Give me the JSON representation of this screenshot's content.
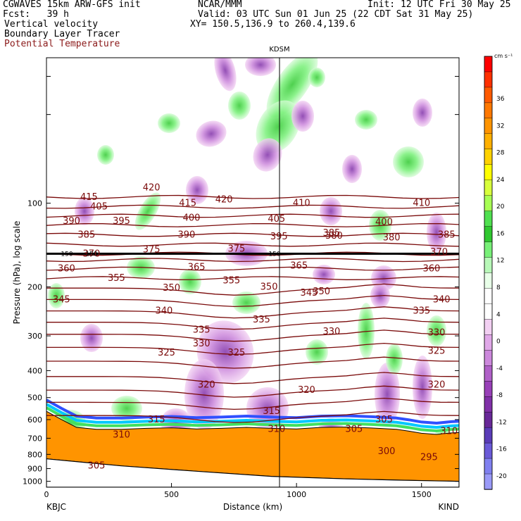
{
  "header": {
    "model_line": "CGWAVES 15km ARW-GFS init",
    "org": "NCAR/MMM",
    "init_line": "Init: 12 UTC Fri 30 May 25",
    "fcst_line": "Fcst:   39 h",
    "valid_line": "Valid: 03 UTC Sun 01 Jun 25 (22 CDT Sat 31 May 25)",
    "field1": "Vertical velocity",
    "field2": "Boundary Layer Tracer",
    "field3": "Potential Temperature",
    "xy_line": "XY= 150.5,136.9 to 260.4,139.6",
    "field3_color": "#8b1a1a"
  },
  "chart_data": {
    "type": "heatmap",
    "title": "",
    "xlabel": "Distance (km)",
    "ylabel": "Pressure (hPa), log scale",
    "x_ticks": [
      "0",
      "500",
      "1000",
      "1500"
    ],
    "x_tick_values": [
      0,
      500,
      1000,
      1500
    ],
    "xlim": [
      0,
      1650
    ],
    "y_tick_labels": [
      "100",
      "200",
      "300",
      "400",
      "500",
      "600",
      "700",
      "800",
      "900",
      "1000"
    ],
    "y_tick_values": [
      100,
      200,
      300,
      400,
      500,
      600,
      700,
      800,
      900,
      1000
    ],
    "yscale": "log",
    "ylim": [
      1050,
      30
    ],
    "left_endpoint": "KBJC",
    "right_endpoint": "KIND",
    "marker_label": "KDSM",
    "marker_x_km": 930,
    "colorbar": {
      "unit": "cm s⁻¹",
      "tick_labels": [
        "36",
        "32",
        "28",
        "24",
        "20",
        "16",
        "12",
        "8",
        "4",
        "0",
        "-4",
        "-8",
        "-12",
        "-16",
        "-20"
      ],
      "tick_values": [
        36,
        32,
        28,
        24,
        20,
        16,
        12,
        8,
        4,
        0,
        -4,
        -8,
        -12,
        -16,
        -20
      ],
      "colors": [
        "#ff0000",
        "#ff3000",
        "#ff5a00",
        "#ff7800",
        "#ff9400",
        "#ffb000",
        "#ffd200",
        "#ffff00",
        "#d8ff3c",
        "#a8ff54",
        "#50e050",
        "#30c830",
        "#78f078",
        "#b8f8b8",
        "#e8ffe8",
        "#ffffff",
        "#ffffff",
        "#f2d0f2",
        "#e0a8e8",
        "#cc88dc",
        "#b060c8",
        "#9840b8",
        "#8030a8",
        "#682898",
        "#5a3cb8",
        "#6a5ad8",
        "#8080f0",
        "#9a9af8"
      ]
    },
    "theta_levels": [
      "415",
      "420",
      "405",
      "415",
      "420",
      "410",
      "410",
      "390",
      "395",
      "400",
      "405",
      "400",
      "385",
      "390",
      "380",
      "395",
      "385",
      "380",
      "385",
      "370",
      "375",
      "375",
      "370",
      "360",
      "365",
      "365",
      "360",
      "355",
      "355",
      "350",
      "350",
      "345",
      "350",
      "345",
      "340",
      "340",
      "335",
      "335",
      "335",
      "330",
      "330",
      "330",
      "325",
      "325",
      "325",
      "320",
      "320",
      "320",
      "315",
      "315",
      "310",
      "310",
      "305",
      "310",
      "305",
      "300",
      "295",
      "305"
    ],
    "tropopause_labels": [
      "150",
      "150",
      "150"
    ],
    "series_note": ""
  }
}
